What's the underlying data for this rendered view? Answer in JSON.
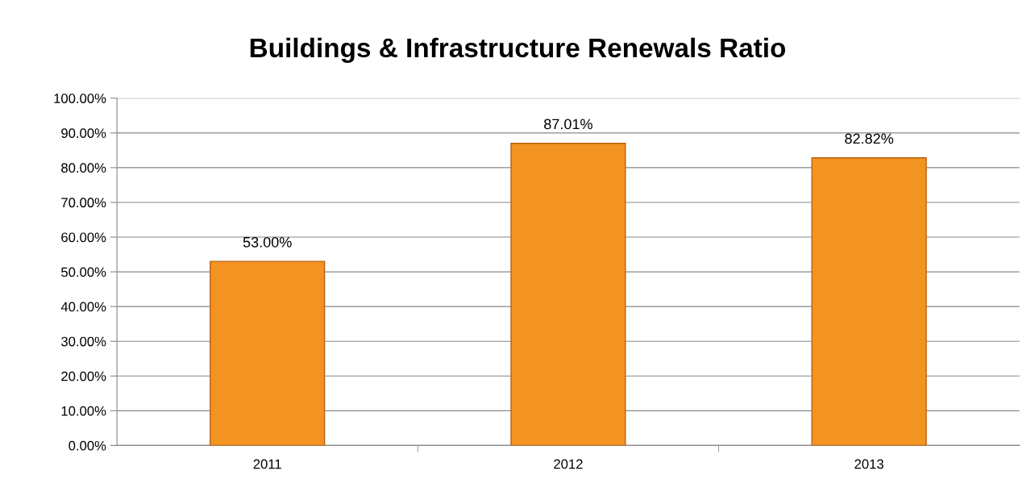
{
  "chart_data": {
    "type": "bar",
    "title": "Buildings & Infrastructure Renewals Ratio",
    "categories": [
      "2011",
      "2012",
      "2013"
    ],
    "values": [
      53.0,
      87.01,
      82.82
    ],
    "value_labels": [
      "53.00%",
      "87.01%",
      "82.82%"
    ],
    "color": "#f39322",
    "ylim": [
      0,
      100
    ],
    "yticks": [
      {
        "value": 0,
        "label": "0.00%"
      },
      {
        "value": 10,
        "label": "10.00%"
      },
      {
        "value": 20,
        "label": "20.00%"
      },
      {
        "value": 30,
        "label": "30.00%"
      },
      {
        "value": 40,
        "label": "40.00%"
      },
      {
        "value": 50,
        "label": "50.00%"
      },
      {
        "value": 60,
        "label": "60.00%"
      },
      {
        "value": 70,
        "label": "70.00%"
      },
      {
        "value": 80,
        "label": "80.00%"
      },
      {
        "value": 90,
        "label": "90.00%"
      },
      {
        "value": 100,
        "label": "100.00%"
      }
    ],
    "grid": "y",
    "legend": false
  }
}
